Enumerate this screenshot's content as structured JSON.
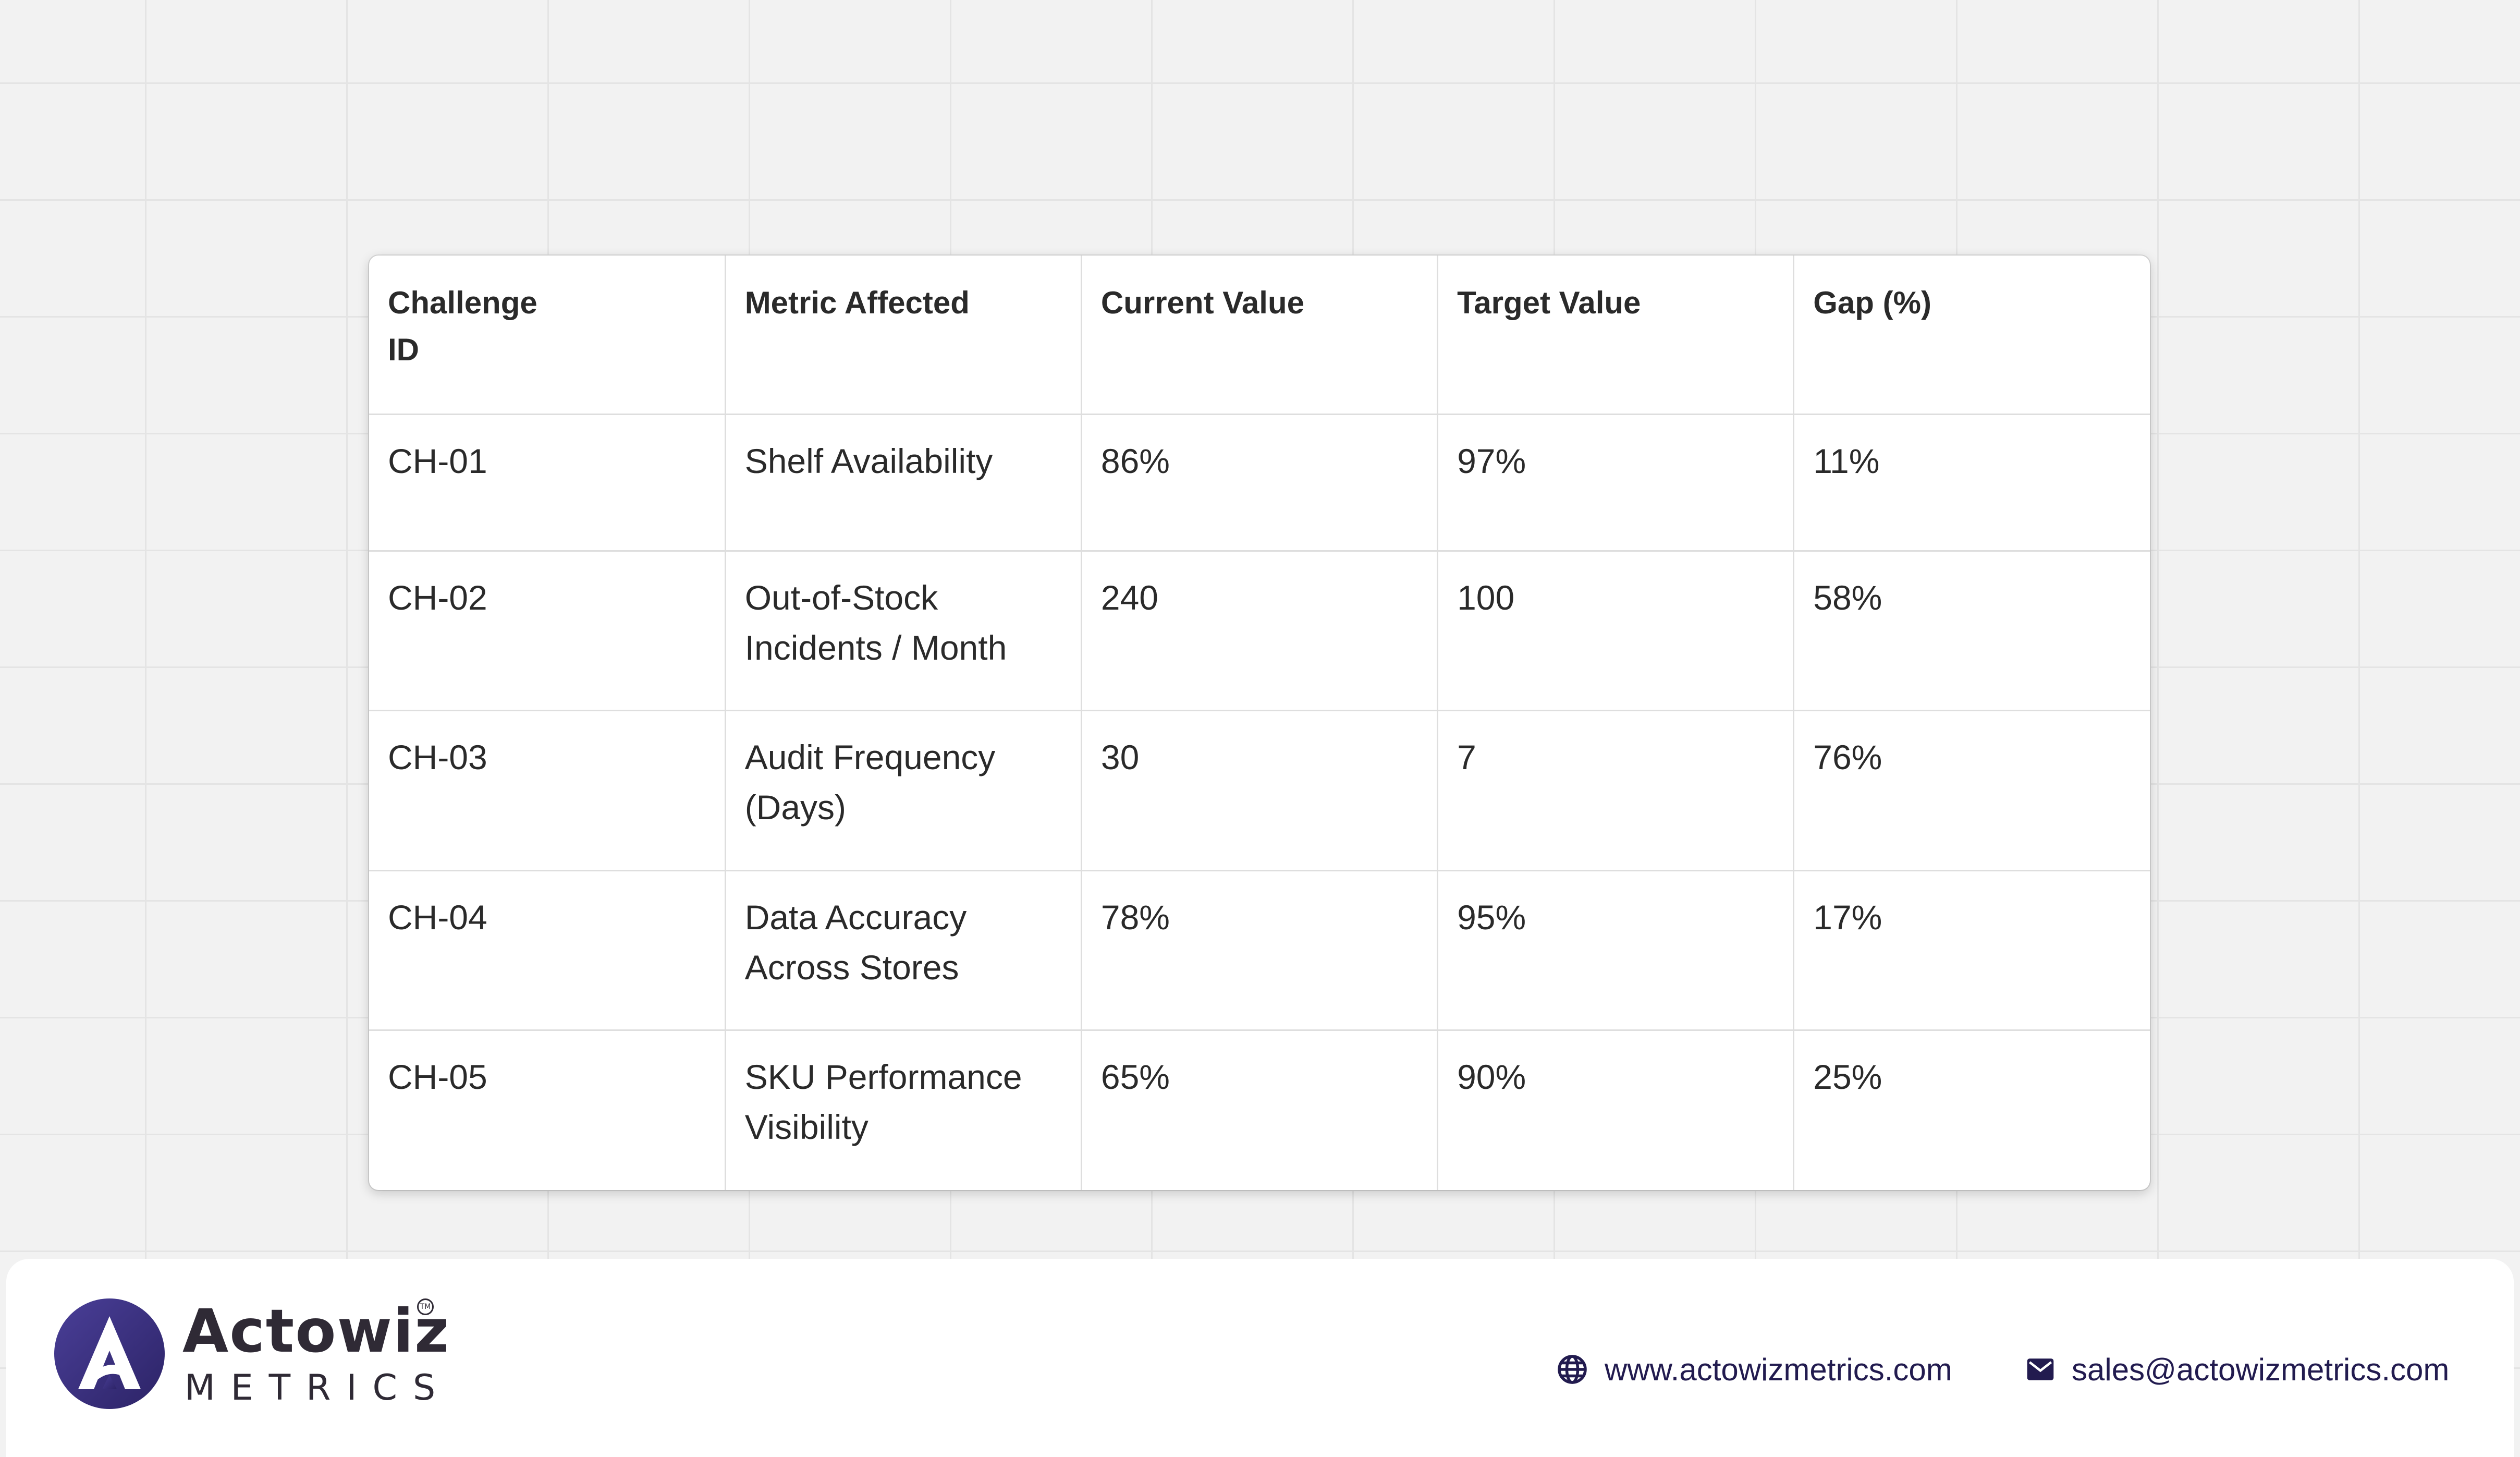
{
  "table": {
    "headers": [
      "Challenge\n ID",
      "Metric Affected",
      "Current Value",
      "Target Value",
      "Gap (%)"
    ],
    "rows": [
      [
        "CH-01",
        "Shelf Availability",
        "86%",
        "97%",
        "11%"
      ],
      [
        "CH-02",
        "Out-of-Stock\nIncidents / Month",
        "240",
        "100",
        "58%"
      ],
      [
        "CH-03",
        "Audit Frequency\n(Days)",
        "30",
        "7",
        "76%"
      ],
      [
        "CH-04",
        "Data Accuracy\nAcross Stores",
        "78%",
        "95%",
        "17%"
      ],
      [
        "CH-05",
        "SKU Performance\nVisibility",
        "65%",
        "90%",
        "25%"
      ]
    ]
  },
  "footer": {
    "brand": "Actowiz",
    "brand_sub": "METRICS",
    "trademark": "TM",
    "website": "www.actowizmetrics.com",
    "email": "sales@actowizmetrics.com",
    "website_icon": "globe-icon",
    "email_icon": "mail-icon"
  },
  "colors": {
    "background": "#f2f2f2",
    "grid_line": "#e4e4e4",
    "table_border": "#dedede",
    "text": "#2a2a2a",
    "brand_dark": "#2f2a35",
    "brand_purple": "#3a2f7d",
    "contact_text": "#221b4f"
  }
}
